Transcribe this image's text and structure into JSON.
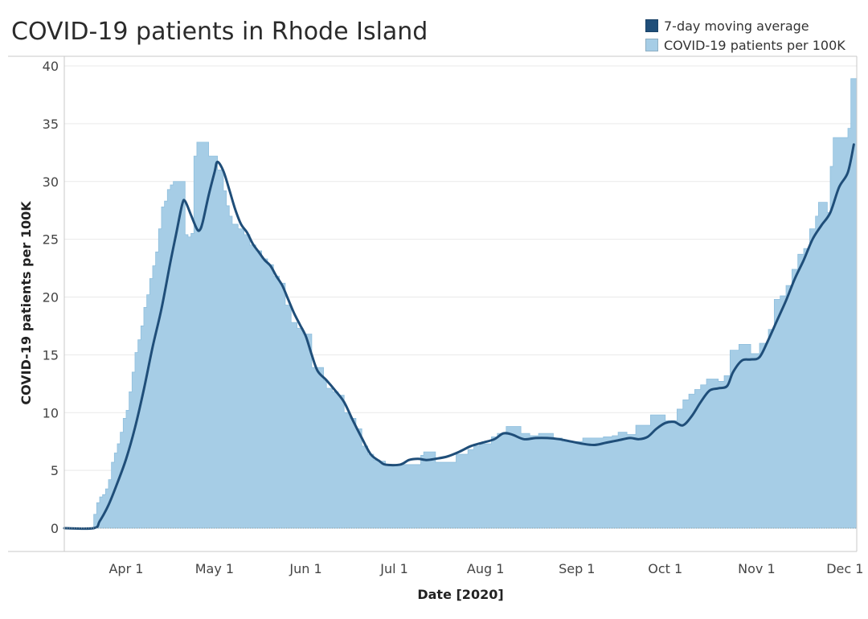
{
  "title": "COVID-19 patients in Rhode Island",
  "legend": [
    {
      "label": "7-day moving average",
      "color": "#1f4e79"
    },
    {
      "label": "COVID-19 patients per 100K",
      "color": "#a6cde6"
    }
  ],
  "chart_data": {
    "type": "area",
    "title": "COVID-19 patients in Rhode Island",
    "xlabel": "Date [2020]",
    "ylabel": "COVID-19 patients per 100K",
    "ylim": [
      0,
      41
    ],
    "yticks": [
      0,
      5,
      10,
      15,
      20,
      25,
      30,
      35,
      40
    ],
    "xlim": [
      "2020-03-11",
      "2020-12-05"
    ],
    "xticks": [
      {
        "date": "2020-04-01",
        "label": "Apr 1"
      },
      {
        "date": "2020-05-01",
        "label": "May 1"
      },
      {
        "date": "2020-06-01",
        "label": "Jun 1"
      },
      {
        "date": "2020-07-01",
        "label": "Jul 1"
      },
      {
        "date": "2020-08-01",
        "label": "Aug 1"
      },
      {
        "date": "2020-09-01",
        "label": "Sep 1"
      },
      {
        "date": "2020-10-01",
        "label": "Oct 1"
      },
      {
        "date": "2020-11-01",
        "label": "Nov 1"
      },
      {
        "date": "2020-12-01",
        "label": "Dec 1"
      }
    ],
    "grid": true,
    "legend_position": "top-right",
    "series": [
      {
        "name": "COVID-19 patients per 100K",
        "kind": "area-step",
        "color": "#a6cde6",
        "points": [
          [
            "2020-03-11",
            0
          ],
          [
            "2020-03-20",
            0
          ],
          [
            "2020-03-21",
            1.2
          ],
          [
            "2020-03-22",
            2.2
          ],
          [
            "2020-03-23",
            2.7
          ],
          [
            "2020-03-24",
            2.9
          ],
          [
            "2020-03-25",
            3.4
          ],
          [
            "2020-03-26",
            4.2
          ],
          [
            "2020-03-27",
            5.7
          ],
          [
            "2020-03-28",
            6.5
          ],
          [
            "2020-03-29",
            7.3
          ],
          [
            "2020-03-30",
            8.3
          ],
          [
            "2020-03-31",
            9.5
          ],
          [
            "2020-04-01",
            10.2
          ],
          [
            "2020-04-02",
            11.8
          ],
          [
            "2020-04-03",
            13.5
          ],
          [
            "2020-04-04",
            15.2
          ],
          [
            "2020-04-05",
            16.3
          ],
          [
            "2020-04-06",
            17.5
          ],
          [
            "2020-04-07",
            19.1
          ],
          [
            "2020-04-08",
            20.2
          ],
          [
            "2020-04-09",
            21.6
          ],
          [
            "2020-04-10",
            22.7
          ],
          [
            "2020-04-11",
            23.9
          ],
          [
            "2020-04-12",
            25.9
          ],
          [
            "2020-04-13",
            27.8
          ],
          [
            "2020-04-14",
            28.3
          ],
          [
            "2020-04-15",
            29.3
          ],
          [
            "2020-04-16",
            29.7
          ],
          [
            "2020-04-17",
            30.0
          ],
          [
            "2020-04-21",
            25.4
          ],
          [
            "2020-04-22",
            25.2
          ],
          [
            "2020-04-23",
            25.5
          ],
          [
            "2020-04-24",
            32.2
          ],
          [
            "2020-04-25",
            33.4
          ],
          [
            "2020-04-29",
            32.2
          ],
          [
            "2020-05-02",
            31.0
          ],
          [
            "2020-05-04",
            29.2
          ],
          [
            "2020-05-05",
            27.9
          ],
          [
            "2020-05-06",
            27.0
          ],
          [
            "2020-05-07",
            26.3
          ],
          [
            "2020-05-09",
            25.9
          ],
          [
            "2020-05-11",
            25.4
          ],
          [
            "2020-05-13",
            24.5
          ],
          [
            "2020-05-15",
            24.0
          ],
          [
            "2020-05-17",
            23.3
          ],
          [
            "2020-05-19",
            22.8
          ],
          [
            "2020-05-21",
            21.8
          ],
          [
            "2020-05-23",
            21.2
          ],
          [
            "2020-05-25",
            19.3
          ],
          [
            "2020-05-27",
            17.8
          ],
          [
            "2020-05-29",
            17.3
          ],
          [
            "2020-05-31",
            16.8
          ],
          [
            "2020-06-03",
            13.9
          ],
          [
            "2020-06-07",
            12.8
          ],
          [
            "2020-06-08",
            12.1
          ],
          [
            "2020-06-10",
            11.8
          ],
          [
            "2020-06-12",
            11.5
          ],
          [
            "2020-06-14",
            10.0
          ],
          [
            "2020-06-16",
            9.5
          ],
          [
            "2020-06-18",
            8.6
          ],
          [
            "2020-06-20",
            7.1
          ],
          [
            "2020-06-22",
            6.4
          ],
          [
            "2020-06-24",
            5.9
          ],
          [
            "2020-06-26",
            5.8
          ],
          [
            "2020-06-28",
            5.5
          ],
          [
            "2020-07-10",
            6.3
          ],
          [
            "2020-07-11",
            6.6
          ],
          [
            "2020-07-15",
            5.7
          ],
          [
            "2020-07-22",
            6.4
          ],
          [
            "2020-07-26",
            6.8
          ],
          [
            "2020-07-28",
            7.1
          ],
          [
            "2020-07-30",
            7.3
          ],
          [
            "2020-08-03",
            7.9
          ],
          [
            "2020-08-05",
            8.2
          ],
          [
            "2020-08-08",
            8.8
          ],
          [
            "2020-08-13",
            8.2
          ],
          [
            "2020-08-16",
            8.0
          ],
          [
            "2020-08-19",
            8.2
          ],
          [
            "2020-08-24",
            7.8
          ],
          [
            "2020-08-27",
            7.5
          ],
          [
            "2020-09-03",
            7.8
          ],
          [
            "2020-09-10",
            7.9
          ],
          [
            "2020-09-13",
            8.0
          ],
          [
            "2020-09-15",
            8.3
          ],
          [
            "2020-09-18",
            8.1
          ],
          [
            "2020-09-21",
            8.9
          ],
          [
            "2020-09-26",
            9.8
          ],
          [
            "2020-10-01",
            9.3
          ],
          [
            "2020-10-05",
            10.3
          ],
          [
            "2020-10-07",
            11.1
          ],
          [
            "2020-10-09",
            11.6
          ],
          [
            "2020-10-11",
            12.0
          ],
          [
            "2020-10-13",
            12.4
          ],
          [
            "2020-10-15",
            12.9
          ],
          [
            "2020-10-19",
            12.7
          ],
          [
            "2020-10-21",
            13.2
          ],
          [
            "2020-10-23",
            15.4
          ],
          [
            "2020-10-26",
            15.9
          ],
          [
            "2020-10-30",
            15.1
          ],
          [
            "2020-11-02",
            16.0
          ],
          [
            "2020-11-05",
            17.2
          ],
          [
            "2020-11-07",
            19.8
          ],
          [
            "2020-11-09",
            20.1
          ],
          [
            "2020-11-11",
            21.0
          ],
          [
            "2020-11-13",
            22.4
          ],
          [
            "2020-11-15",
            23.7
          ],
          [
            "2020-11-17",
            24.2
          ],
          [
            "2020-11-19",
            25.9
          ],
          [
            "2020-11-21",
            27.0
          ],
          [
            "2020-11-22",
            28.2
          ],
          [
            "2020-11-25",
            27.3
          ],
          [
            "2020-11-26",
            31.3
          ],
          [
            "2020-11-27",
            33.8
          ],
          [
            "2020-12-02",
            34.6
          ],
          [
            "2020-12-03",
            38.9
          ],
          [
            "2020-12-05",
            38.9
          ]
        ]
      },
      {
        "name": "7-day moving average",
        "kind": "line",
        "color": "#1f4e79",
        "points": [
          [
            "2020-03-11",
            0
          ],
          [
            "2020-03-21",
            0
          ],
          [
            "2020-03-23",
            0.6
          ],
          [
            "2020-03-26",
            2.0
          ],
          [
            "2020-03-29",
            3.9
          ],
          [
            "2020-04-01",
            6.0
          ],
          [
            "2020-04-04",
            8.7
          ],
          [
            "2020-04-07",
            12.0
          ],
          [
            "2020-04-10",
            15.7
          ],
          [
            "2020-04-13",
            19.0
          ],
          [
            "2020-04-16",
            23.0
          ],
          [
            "2020-04-18",
            25.5
          ],
          [
            "2020-04-20",
            28.0
          ],
          [
            "2020-04-21",
            28.3
          ],
          [
            "2020-04-23",
            27.1
          ],
          [
            "2020-04-25",
            25.9
          ],
          [
            "2020-04-26",
            25.8
          ],
          [
            "2020-04-27",
            26.5
          ],
          [
            "2020-04-29",
            28.8
          ],
          [
            "2020-05-01",
            30.8
          ],
          [
            "2020-05-02",
            31.7
          ],
          [
            "2020-05-04",
            30.9
          ],
          [
            "2020-05-06",
            29.3
          ],
          [
            "2020-05-08",
            27.6
          ],
          [
            "2020-05-10",
            26.3
          ],
          [
            "2020-05-12",
            25.6
          ],
          [
            "2020-05-14",
            24.6
          ],
          [
            "2020-05-16",
            23.9
          ],
          [
            "2020-05-18",
            23.2
          ],
          [
            "2020-05-20",
            22.7
          ],
          [
            "2020-05-22",
            21.8
          ],
          [
            "2020-05-24",
            21.0
          ],
          [
            "2020-05-26",
            19.8
          ],
          [
            "2020-05-28",
            18.6
          ],
          [
            "2020-05-30",
            17.6
          ],
          [
            "2020-06-01",
            16.6
          ],
          [
            "2020-06-03",
            15.0
          ],
          [
            "2020-06-05",
            13.6
          ],
          [
            "2020-06-08",
            12.8
          ],
          [
            "2020-06-11",
            11.9
          ],
          [
            "2020-06-14",
            10.9
          ],
          [
            "2020-06-17",
            9.3
          ],
          [
            "2020-06-20",
            7.8
          ],
          [
            "2020-06-23",
            6.4
          ],
          [
            "2020-06-26",
            5.8
          ],
          [
            "2020-06-28",
            5.5
          ],
          [
            "2020-07-03",
            5.5
          ],
          [
            "2020-07-06",
            5.9
          ],
          [
            "2020-07-09",
            6.0
          ],
          [
            "2020-07-12",
            5.9
          ],
          [
            "2020-07-15",
            6.0
          ],
          [
            "2020-07-19",
            6.2
          ],
          [
            "2020-07-23",
            6.6
          ],
          [
            "2020-07-27",
            7.1
          ],
          [
            "2020-07-31",
            7.4
          ],
          [
            "2020-08-04",
            7.7
          ],
          [
            "2020-08-07",
            8.2
          ],
          [
            "2020-08-10",
            8.1
          ],
          [
            "2020-08-14",
            7.7
          ],
          [
            "2020-08-18",
            7.8
          ],
          [
            "2020-08-22",
            7.8
          ],
          [
            "2020-08-26",
            7.7
          ],
          [
            "2020-08-30",
            7.5
          ],
          [
            "2020-09-03",
            7.3
          ],
          [
            "2020-09-07",
            7.2
          ],
          [
            "2020-09-11",
            7.4
          ],
          [
            "2020-09-15",
            7.6
          ],
          [
            "2020-09-19",
            7.8
          ],
          [
            "2020-09-22",
            7.7
          ],
          [
            "2020-09-25",
            7.9
          ],
          [
            "2020-09-28",
            8.6
          ],
          [
            "2020-10-01",
            9.1
          ],
          [
            "2020-10-04",
            9.2
          ],
          [
            "2020-10-07",
            8.9
          ],
          [
            "2020-10-10",
            9.7
          ],
          [
            "2020-10-13",
            10.9
          ],
          [
            "2020-10-16",
            11.9
          ],
          [
            "2020-10-19",
            12.1
          ],
          [
            "2020-10-22",
            12.3
          ],
          [
            "2020-10-24",
            13.5
          ],
          [
            "2020-10-27",
            14.5
          ],
          [
            "2020-10-30",
            14.6
          ],
          [
            "2020-11-02",
            14.8
          ],
          [
            "2020-11-05",
            16.3
          ],
          [
            "2020-11-08",
            18.0
          ],
          [
            "2020-11-11",
            19.7
          ],
          [
            "2020-11-14",
            21.6
          ],
          [
            "2020-11-17",
            23.2
          ],
          [
            "2020-11-20",
            25.0
          ],
          [
            "2020-11-23",
            26.2
          ],
          [
            "2020-11-26",
            27.3
          ],
          [
            "2020-11-29",
            29.5
          ],
          [
            "2020-12-02",
            30.8
          ],
          [
            "2020-12-04",
            33.2
          ]
        ]
      }
    ]
  }
}
